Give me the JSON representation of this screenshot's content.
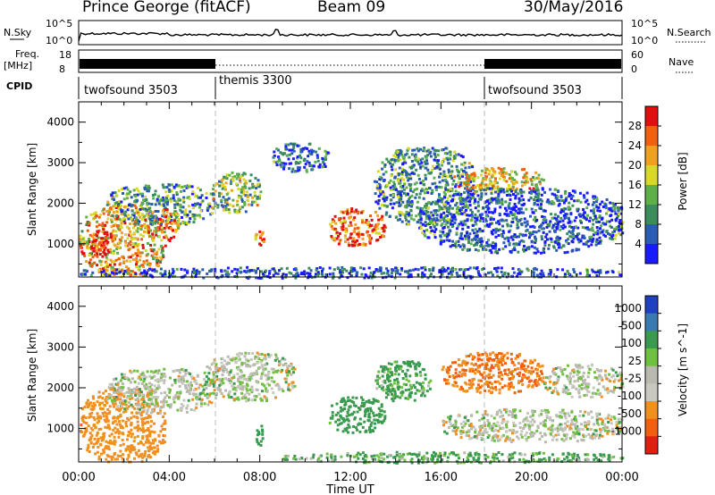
{
  "header": {
    "station": "Prince George (fitACF)",
    "beam": "Beam 09",
    "date": "30/May/2016"
  },
  "strip_labels": {
    "nsky": "N.Sky",
    "nsky_tick_hi": "10^5",
    "nsky_tick_lo": "10^0",
    "nsearch": "N.Search",
    "nsearch_tick_hi": "10^5",
    "nsearch_tick_lo": "10^0",
    "freq_line1": "Freq.",
    "freq_line2": "[MHz]",
    "freq_tick_hi": "18",
    "freq_tick_lo": "8",
    "nave": "Nave",
    "nave_tick_hi": "60",
    "nave_tick_lo": "0",
    "cpid": "CPID"
  },
  "cpid_segments": [
    {
      "label": "twofsound 3503",
      "start_hour": 0,
      "end_hour": 6
    },
    {
      "label": "themis 3300",
      "start_hour": 6,
      "end_hour": 18
    },
    {
      "label": "twofsound 3503",
      "start_hour": 18,
      "end_hour": 24
    }
  ],
  "axes": {
    "x_ticks": [
      "00:00",
      "04:00",
      "08:00",
      "12:00",
      "16:00",
      "20:00",
      "00:00"
    ],
    "xlabel": "Time UT",
    "ylabel": "Slant Range [km]",
    "y_ticks": [
      "1000",
      "2000",
      "3000",
      "4000"
    ]
  },
  "power_colorbar": {
    "label": "Power [dB]",
    "ticks": [
      "4",
      "8",
      "12",
      "16",
      "20",
      "24",
      "28"
    ],
    "colors": [
      "#1a1aff",
      "#2a5bb5",
      "#3d8c5c",
      "#5fb04a",
      "#d8d82a",
      "#f0a020",
      "#f06010",
      "#e01010"
    ]
  },
  "velocity_colorbar": {
    "label": "Velocity [m s^-1]",
    "ticks": [
      "1000",
      "500",
      "100",
      "25",
      "-25",
      "-100",
      "-500",
      "-1000"
    ],
    "colors": [
      "#2040c0",
      "#3a7ab0",
      "#3a9a50",
      "#70c040",
      "#b9b9b0",
      "#c8c8c0",
      "#f09020",
      "#f06010",
      "#e02010"
    ]
  },
  "chart_data": [
    {
      "type": "heatmap",
      "title": "Power",
      "xlabel": "Time UT",
      "ylabel": "Slant Range [km]",
      "xlim": [
        0,
        24
      ],
      "ylim": [
        180,
        4500
      ],
      "colorbar_label": "Power [dB]",
      "colorbar_range": [
        0,
        32
      ],
      "echo_regions": [
        {
          "t_start": 0.0,
          "t_end": 3.8,
          "r_low": 200,
          "r_high": 2000,
          "level_dB": 22
        },
        {
          "t_start": 0.5,
          "t_end": 1.5,
          "r_low": 700,
          "r_high": 1400,
          "level_dB": 29
        },
        {
          "t_start": 1.2,
          "t_end": 6.0,
          "r_low": 1500,
          "r_high": 2500,
          "level_dB": 10
        },
        {
          "t_start": 3.5,
          "t_end": 4.4,
          "r_low": 1100,
          "r_high": 1900,
          "level_dB": 26
        },
        {
          "t_start": 5.8,
          "t_end": 8.0,
          "r_low": 1800,
          "r_high": 2800,
          "level_dB": 14
        },
        {
          "t_start": 7.7,
          "t_end": 8.3,
          "r_low": 950,
          "r_high": 1350,
          "level_dB": 27
        },
        {
          "t_start": 8.5,
          "t_end": 11.0,
          "r_low": 2800,
          "r_high": 3500,
          "level_dB": 6
        },
        {
          "t_start": 11.0,
          "t_end": 13.5,
          "r_low": 950,
          "r_high": 1900,
          "level_dB": 27
        },
        {
          "t_start": 13.0,
          "t_end": 17.5,
          "r_low": 1500,
          "r_high": 3400,
          "level_dB": 10
        },
        {
          "t_start": 16.5,
          "t_end": 20.5,
          "r_low": 2300,
          "r_high": 2900,
          "level_dB": 20
        },
        {
          "t_start": 15.0,
          "t_end": 24.0,
          "r_low": 800,
          "r_high": 2400,
          "level_dB": 6
        },
        {
          "t_start": 0.0,
          "t_end": 24.0,
          "r_low": 180,
          "r_high": 450,
          "level_dB": 5
        }
      ]
    },
    {
      "type": "heatmap",
      "title": "Velocity",
      "xlabel": "Time UT",
      "ylabel": "Slant Range [km]",
      "xlim": [
        0,
        24
      ],
      "ylim": [
        180,
        4500
      ],
      "colorbar_label": "Velocity [m s^-1]",
      "colorbar_range": [
        -1000,
        1000
      ],
      "echo_regions": [
        {
          "t_start": 0.0,
          "t_end": 3.8,
          "r_low": 200,
          "r_high": 2000,
          "velocity": -200
        },
        {
          "t_start": 1.2,
          "t_end": 6.0,
          "r_low": 1400,
          "r_high": 2500,
          "velocity": 0
        },
        {
          "t_start": 5.5,
          "t_end": 9.5,
          "r_low": 1700,
          "r_high": 2900,
          "velocity": 0
        },
        {
          "t_start": 7.8,
          "t_end": 8.2,
          "r_low": 600,
          "r_high": 1150,
          "velocity": 150
        },
        {
          "t_start": 11.0,
          "t_end": 13.5,
          "r_low": 900,
          "r_high": 1800,
          "velocity": 150
        },
        {
          "t_start": 13.0,
          "t_end": 15.5,
          "r_low": 1700,
          "r_high": 2700,
          "velocity": 100
        },
        {
          "t_start": 16.0,
          "t_end": 20.5,
          "r_low": 1900,
          "r_high": 2900,
          "velocity": -300
        },
        {
          "t_start": 20.5,
          "t_end": 24.0,
          "r_low": 1800,
          "r_high": 2600,
          "velocity": 0
        },
        {
          "t_start": 16.0,
          "t_end": 24.0,
          "r_low": 700,
          "r_high": 1500,
          "velocity": 0
        },
        {
          "t_start": 9.0,
          "t_end": 24.0,
          "r_low": 180,
          "r_high": 450,
          "velocity": 80
        }
      ]
    }
  ]
}
